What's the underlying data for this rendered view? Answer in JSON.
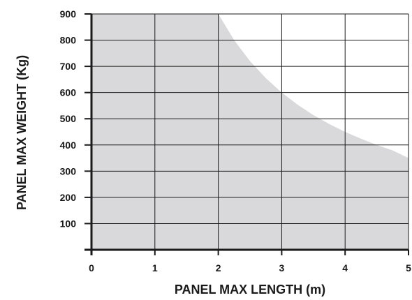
{
  "chart_data": {
    "type": "area",
    "title": "",
    "xlabel": "PANEL MAX LENGTH (m)",
    "ylabel": "PANEL MAX WEIGHT (Kg)",
    "xlim": [
      0,
      5
    ],
    "ylim": [
      0,
      900
    ],
    "x_ticks": [
      "0",
      "1",
      "2",
      "3",
      "4",
      "5"
    ],
    "y_ticks": [
      "100",
      "200",
      "300",
      "400",
      "500",
      "600",
      "700",
      "800",
      "900"
    ],
    "grid": true,
    "legend": "none",
    "fill_color": "#d9d9db",
    "series": [
      {
        "x": [
          0,
          2,
          2.25,
          2.5,
          2.75,
          3,
          3.25,
          3.5,
          3.75,
          4,
          4.25,
          4.5,
          4.75,
          5
        ],
        "values": [
          900,
          900,
          800,
          720,
          655,
          600,
          554,
          514,
          480,
          450,
          424,
          400,
          379,
          350
        ]
      }
    ]
  }
}
